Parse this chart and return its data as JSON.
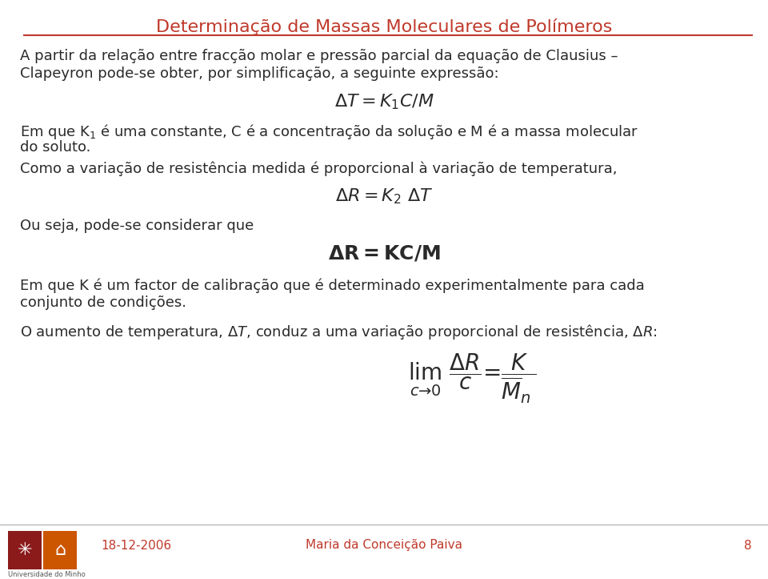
{
  "title": "Determinação de Massas Moleculares de Polímeros",
  "title_color": "#C0392B",
  "title_fontsize": 16,
  "bg_color": "#FFFFFF",
  "text_color": "#2a2a2a",
  "footer_color": "#C0392B",
  "body_fs": 13,
  "eq_fs": 16,
  "body_lines1": [
    "A partir da relação entre fracção molar e pressão parcial da equação de Clausius –",
    "Clapeyron pode-se obter, por simplificação, a seguinte expressão:"
  ],
  "eq1": "$\\Delta T = K_1C/M$",
  "body_lines2": [
    "Em que K$_1$ é uma constante, C é a concentração da solução e M é a massa molecular",
    "do soluto."
  ],
  "body_line3": "Como a variação de resistência medida é proporcional à variação de temperatura,",
  "eq2": "$\\Delta R = K_2\\ \\Delta T$",
  "body_line4": "Ou seja, pode-se considerar que",
  "eq3": "$\\mathbf{\\Delta R = KC/M}$",
  "body_lines5": [
    "Em que K é um factor de calibração que é determinado experimentalmente para cada",
    "conjunto de condições."
  ],
  "body_line6": "O aumento de temperatura, $\\Delta T$, conduz a uma variação proporcional de resistência, $\\Delta R$:",
  "footer_date": "18-12-2006",
  "footer_author": "Maria da Conceição Paiva",
  "footer_page": "8",
  "footer_fontsize": 11,
  "logo_dark_color": "#8B1A1A",
  "logo_orange_color": "#CC5500"
}
